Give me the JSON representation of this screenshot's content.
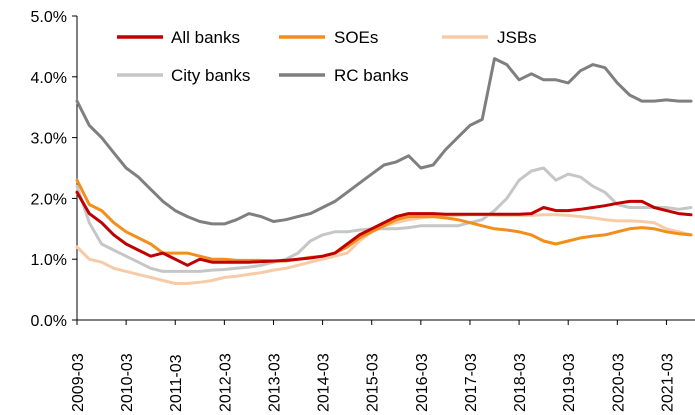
{
  "chart_data": {
    "type": "line",
    "title": "",
    "xlabel": "",
    "ylabel": "",
    "ylim": [
      0,
      5
    ],
    "y_ticks": [
      "0.0%",
      "1.0%",
      "2.0%",
      "3.0%",
      "4.0%",
      "5.0%"
    ],
    "x_ticks": [
      "2009-03",
      "2010-03",
      "2011-03",
      "2012-03",
      "2013-03",
      "2014-03",
      "2015-03",
      "2016-03",
      "2017-03",
      "2018-03",
      "2019-03",
      "2020-03",
      "2021-03"
    ],
    "grid": false,
    "legend": "top",
    "x": [
      "2009-03",
      "2009-06",
      "2009-09",
      "2009-12",
      "2010-03",
      "2010-06",
      "2010-09",
      "2010-12",
      "2011-03",
      "2011-06",
      "2011-09",
      "2011-12",
      "2012-03",
      "2012-06",
      "2012-09",
      "2012-12",
      "2013-03",
      "2013-06",
      "2013-09",
      "2013-12",
      "2014-03",
      "2014-06",
      "2014-09",
      "2014-12",
      "2015-03",
      "2015-06",
      "2015-09",
      "2015-12",
      "2016-03",
      "2016-06",
      "2016-09",
      "2016-12",
      "2017-03",
      "2017-06",
      "2017-09",
      "2017-12",
      "2018-03",
      "2018-06",
      "2018-09",
      "2018-12",
      "2019-03",
      "2019-06",
      "2019-09",
      "2019-12",
      "2020-03",
      "2020-06",
      "2020-09",
      "2020-12",
      "2021-03",
      "2021-06",
      "2021-09"
    ],
    "series": [
      {
        "name": "All banks",
        "color": "#C00000",
        "values": [
          2.1,
          1.75,
          1.6,
          1.4,
          1.25,
          1.15,
          1.05,
          1.1,
          1.0,
          0.9,
          1.0,
          0.95,
          0.95,
          0.95,
          0.95,
          0.96,
          0.97,
          0.98,
          1.0,
          1.02,
          1.05,
          1.1,
          1.25,
          1.4,
          1.5,
          1.6,
          1.7,
          1.75,
          1.75,
          1.75,
          1.74,
          1.74,
          1.74,
          1.74,
          1.74,
          1.74,
          1.74,
          1.75,
          1.85,
          1.8,
          1.8,
          1.82,
          1.85,
          1.88,
          1.92,
          1.95,
          1.95,
          1.85,
          1.8,
          1.75,
          1.73
        ]
      },
      {
        "name": "SOEs",
        "color": "#F28E1B",
        "values": [
          2.3,
          1.9,
          1.8,
          1.6,
          1.45,
          1.35,
          1.25,
          1.1,
          1.1,
          1.1,
          1.05,
          1.0,
          1.0,
          0.98,
          0.98,
          0.98,
          0.97,
          0.97,
          1.0,
          1.03,
          1.05,
          1.1,
          1.2,
          1.35,
          1.45,
          1.55,
          1.65,
          1.7,
          1.7,
          1.7,
          1.68,
          1.65,
          1.6,
          1.55,
          1.5,
          1.48,
          1.45,
          1.4,
          1.3,
          1.25,
          1.3,
          1.35,
          1.38,
          1.4,
          1.45,
          1.5,
          1.52,
          1.5,
          1.45,
          1.42,
          1.4
        ]
      },
      {
        "name": "JSBs",
        "color": "#F8CBA8",
        "values": [
          1.2,
          1.0,
          0.95,
          0.85,
          0.8,
          0.75,
          0.7,
          0.65,
          0.6,
          0.6,
          0.62,
          0.65,
          0.7,
          0.72,
          0.75,
          0.78,
          0.82,
          0.85,
          0.9,
          0.95,
          1.0,
          1.05,
          1.1,
          1.3,
          1.45,
          1.55,
          1.6,
          1.65,
          1.68,
          1.7,
          1.7,
          1.72,
          1.73,
          1.73,
          1.72,
          1.72,
          1.72,
          1.72,
          1.73,
          1.73,
          1.72,
          1.7,
          1.68,
          1.65,
          1.63,
          1.63,
          1.62,
          1.6,
          1.5,
          1.45,
          1.4
        ]
      },
      {
        "name": "City banks",
        "color": "#C6C6C6",
        "values": [
          2.2,
          1.6,
          1.25,
          1.15,
          1.05,
          0.95,
          0.85,
          0.8,
          0.8,
          0.8,
          0.8,
          0.82,
          0.83,
          0.85,
          0.87,
          0.9,
          0.95,
          1.0,
          1.1,
          1.3,
          1.4,
          1.45,
          1.45,
          1.48,
          1.5,
          1.5,
          1.5,
          1.52,
          1.55,
          1.55,
          1.55,
          1.55,
          1.6,
          1.65,
          1.8,
          2.0,
          2.3,
          2.45,
          2.5,
          2.3,
          2.4,
          2.35,
          2.2,
          2.1,
          1.9,
          1.85,
          1.85,
          1.85,
          1.85,
          1.82,
          1.85
        ]
      },
      {
        "name": "RC banks",
        "color": "#7F7F7F",
        "values": [
          3.6,
          3.2,
          3.0,
          2.75,
          2.5,
          2.35,
          2.15,
          1.95,
          1.8,
          1.7,
          1.62,
          1.58,
          1.58,
          1.65,
          1.75,
          1.7,
          1.62,
          1.65,
          1.7,
          1.75,
          1.85,
          1.95,
          2.1,
          2.25,
          2.4,
          2.55,
          2.6,
          2.7,
          2.5,
          2.55,
          2.8,
          3.0,
          3.2,
          3.3,
          4.3,
          4.2,
          3.95,
          4.05,
          3.95,
          3.95,
          3.9,
          4.1,
          4.2,
          4.15,
          3.9,
          3.7,
          3.6,
          3.6,
          3.62,
          3.6,
          3.6
        ]
      }
    ]
  }
}
